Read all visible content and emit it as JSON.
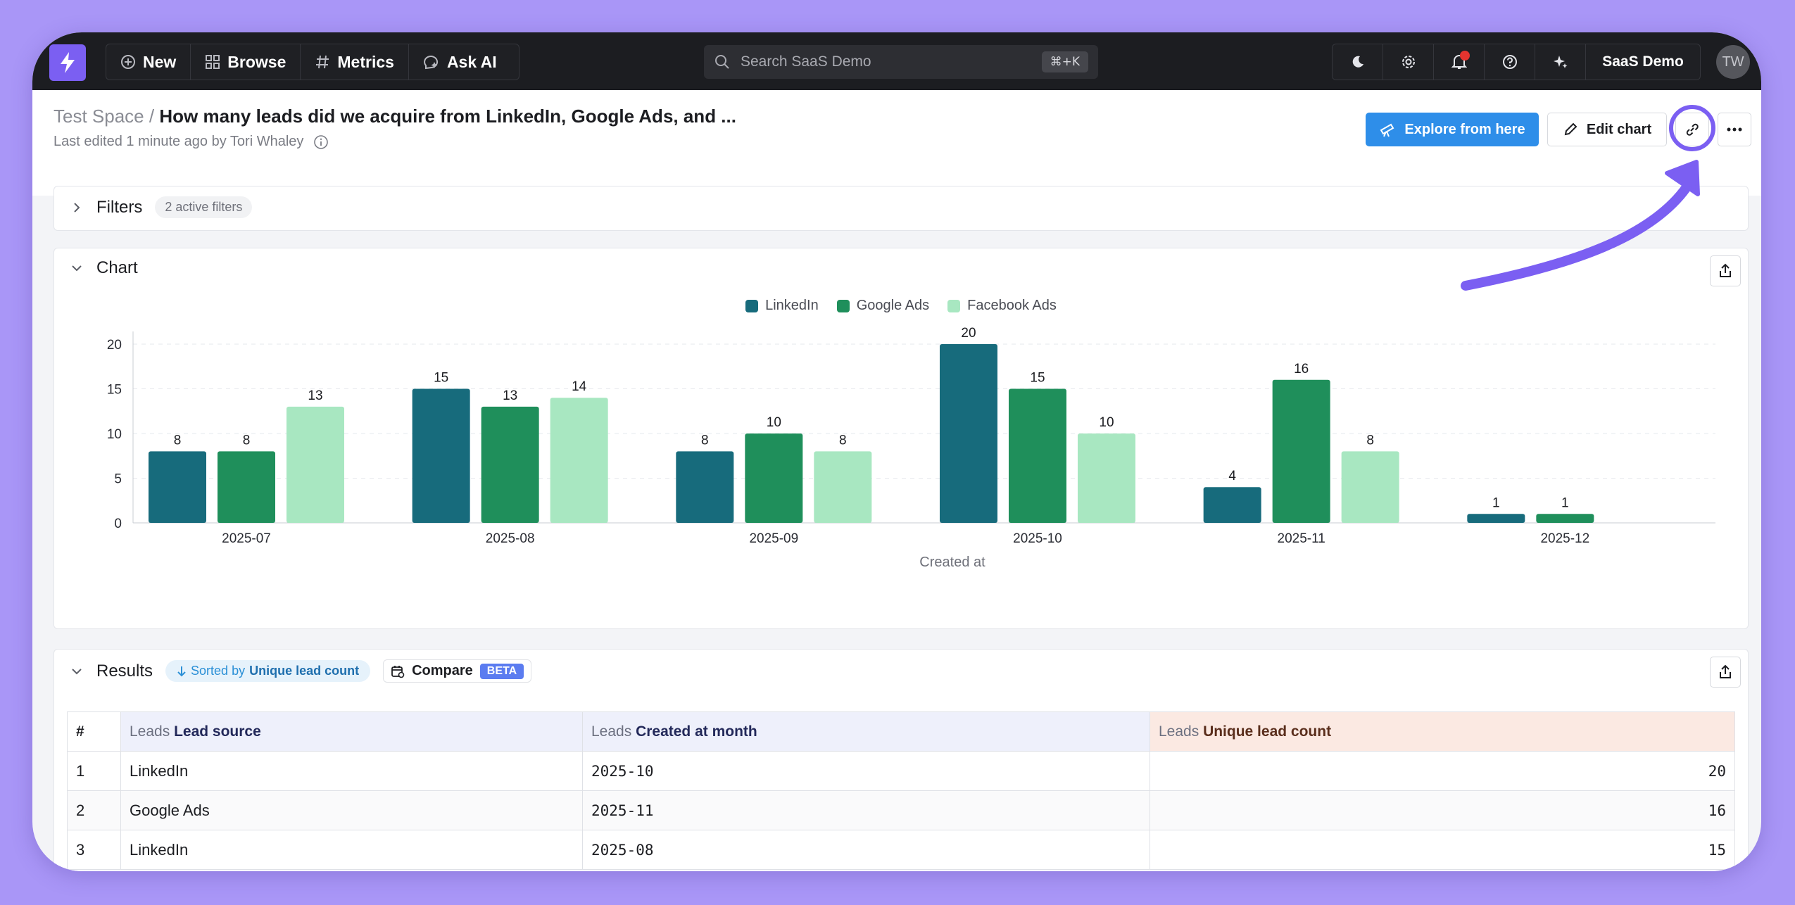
{
  "topbar": {
    "nav": [
      {
        "label": "New",
        "icon": "plus-circle-icon"
      },
      {
        "label": "Browse",
        "icon": "grid-icon"
      },
      {
        "label": "Metrics",
        "icon": "hash-icon"
      },
      {
        "label": "Ask AI",
        "icon": "ai-chat-icon"
      }
    ],
    "search_placeholder": "Search SaaS Demo",
    "search_shortcut": "⌘+K",
    "workspace_name": "SaaS Demo",
    "avatar_initials": "TW"
  },
  "header": {
    "space": "Test Space",
    "separator": "/",
    "title": "How many leads did we acquire from LinkedIn, Google Ads, and ...",
    "last_edited": "Last edited 1 minute ago by Tori Whaley",
    "explore_label": "Explore from here",
    "edit_label": "Edit chart"
  },
  "filters": {
    "title": "Filters",
    "badge": "2 active filters"
  },
  "chart_section": {
    "title": "Chart"
  },
  "chart_data": {
    "type": "bar",
    "categories": [
      "2025-07",
      "2025-08",
      "2025-09",
      "2025-10",
      "2025-11",
      "2025-12"
    ],
    "series": [
      {
        "name": "LinkedIn",
        "color": "#176b7c",
        "values": [
          8,
          15,
          8,
          20,
          4,
          1
        ]
      },
      {
        "name": "Google Ads",
        "color": "#1f8f5b",
        "values": [
          8,
          13,
          10,
          15,
          16,
          1
        ]
      },
      {
        "name": "Facebook Ads",
        "color": "#a8e7c1",
        "values": [
          13,
          14,
          8,
          10,
          8,
          null
        ]
      }
    ],
    "xlabel": "Created at",
    "ylabel": "",
    "ylim": [
      0,
      20
    ],
    "yticks": [
      0,
      5,
      10,
      15,
      20
    ],
    "grid": true,
    "legend_position": "top-center",
    "data_labels": true
  },
  "results": {
    "title": "Results",
    "sorted_prefix": "Sorted by",
    "sorted_field": "Unique lead count",
    "compare_label": "Compare",
    "beta_label": "BETA",
    "columns": [
      {
        "prefix": "",
        "label": "#"
      },
      {
        "prefix": "Leads",
        "label": "Lead source"
      },
      {
        "prefix": "Leads",
        "label": "Created at month"
      },
      {
        "prefix": "Leads",
        "label": "Unique lead count"
      }
    ],
    "rows": [
      {
        "index": "1",
        "source": "LinkedIn",
        "month": "2025-10",
        "count": "20"
      },
      {
        "index": "2",
        "source": "Google Ads",
        "month": "2025-11",
        "count": "16"
      },
      {
        "index": "3",
        "source": "LinkedIn",
        "month": "2025-08",
        "count": "15"
      }
    ]
  },
  "colors": {
    "background": "#a996f7",
    "topbar": "#1c1d21",
    "accent": "#7b5ff2",
    "primary_button": "#2e8ee9",
    "annotation": "#7b5ff2"
  }
}
